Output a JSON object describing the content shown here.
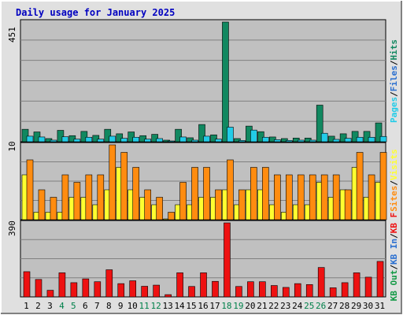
{
  "title": "Daily usage for January 2025",
  "colors": {
    "outer_bg": "#e0e0e0",
    "panel_bg": "#c0c0c0",
    "grid": "#808080",
    "title_text": "#0000c0",
    "hits": "#118860",
    "files": "#22cce8",
    "pages": "#22cce8",
    "visits": "#ffff30",
    "sites": "#ff8c10",
    "kbin": "#2a6fd0",
    "kbout": "#119944",
    "kbf": "#ee1111",
    "weekend_day": "#00804a"
  },
  "chart_data": [
    {
      "type": "bar",
      "panel": "top",
      "ymax_label": "451",
      "ylim": [
        0,
        451
      ],
      "legend": [
        {
          "name": "Hits",
          "color": "#118860"
        },
        {
          "name": "Files",
          "color": "#2a6fd0"
        },
        {
          "name": "Pages",
          "color": "#22cce8"
        }
      ],
      "series": [
        {
          "name": "Hits",
          "values": [
            47,
            37,
            12,
            43,
            23,
            39,
            24,
            47,
            30,
            37,
            23,
            28,
            6,
            47,
            15,
            65,
            26,
            451,
            12,
            59,
            38,
            18,
            12,
            14,
            14,
            138,
            21,
            30,
            39,
            39,
            71
          ]
        },
        {
          "name": "Pages",
          "values": [
            21,
            18,
            6,
            19,
            10,
            17,
            10,
            21,
            13,
            17,
            10,
            12,
            3,
            18,
            6,
            21,
            10,
            55,
            5,
            44,
            17,
            8,
            5,
            6,
            6,
            32,
            9,
            13,
            17,
            17,
            20
          ]
        }
      ]
    },
    {
      "type": "bar",
      "panel": "middle",
      "ymax_label": "10",
      "ylim": [
        0,
        10
      ],
      "legend": [
        {
          "name": "Visits",
          "color": "#ffff30"
        },
        {
          "name": "Sites",
          "color": "#ff8c10"
        }
      ],
      "series": [
        {
          "name": "Visits",
          "values": [
            6,
            1,
            1,
            1,
            3,
            3,
            2,
            4,
            7,
            4,
            3,
            2,
            0,
            2,
            2,
            3,
            3,
            4,
            2,
            4,
            4,
            2,
            1,
            2,
            2,
            5,
            3,
            4,
            7,
            3,
            5
          ]
        },
        {
          "name": "Sites",
          "values": [
            8,
            4,
            3,
            6,
            5,
            6,
            6,
            10,
            9,
            7,
            4,
            3,
            1,
            5,
            7,
            7,
            4,
            8,
            4,
            7,
            7,
            6,
            6,
            6,
            6,
            6,
            6,
            4,
            9,
            6,
            9
          ]
        }
      ]
    },
    {
      "type": "bar",
      "panel": "bottom",
      "ymax_label": "390",
      "ylim": [
        0,
        390
      ],
      "legend": [
        {
          "name": "KB F",
          "color": "#ee1111"
        },
        {
          "name": "KB In",
          "color": "#2a6fd0"
        },
        {
          "name": "KB Out",
          "color": "#119944"
        }
      ],
      "series": [
        {
          "name": "KB F",
          "values": [
            133,
            92,
            35,
            127,
            75,
            95,
            80,
            143,
            70,
            85,
            56,
            62,
            12,
            127,
            55,
            127,
            82,
            390,
            55,
            80,
            80,
            60,
            50,
            70,
            65,
            155,
            48,
            75,
            127,
            104,
            187
          ]
        }
      ],
      "categories": [
        "1",
        "2",
        "3",
        "4",
        "5",
        "6",
        "7",
        "8",
        "9",
        "10",
        "11",
        "12",
        "13",
        "14",
        "15",
        "16",
        "17",
        "18",
        "19",
        "20",
        "21",
        "22",
        "23",
        "24",
        "25",
        "26",
        "27",
        "28",
        "29",
        "30",
        "31"
      ],
      "weekend_days": [
        4,
        5,
        11,
        12,
        18,
        19,
        25,
        26
      ]
    }
  ]
}
